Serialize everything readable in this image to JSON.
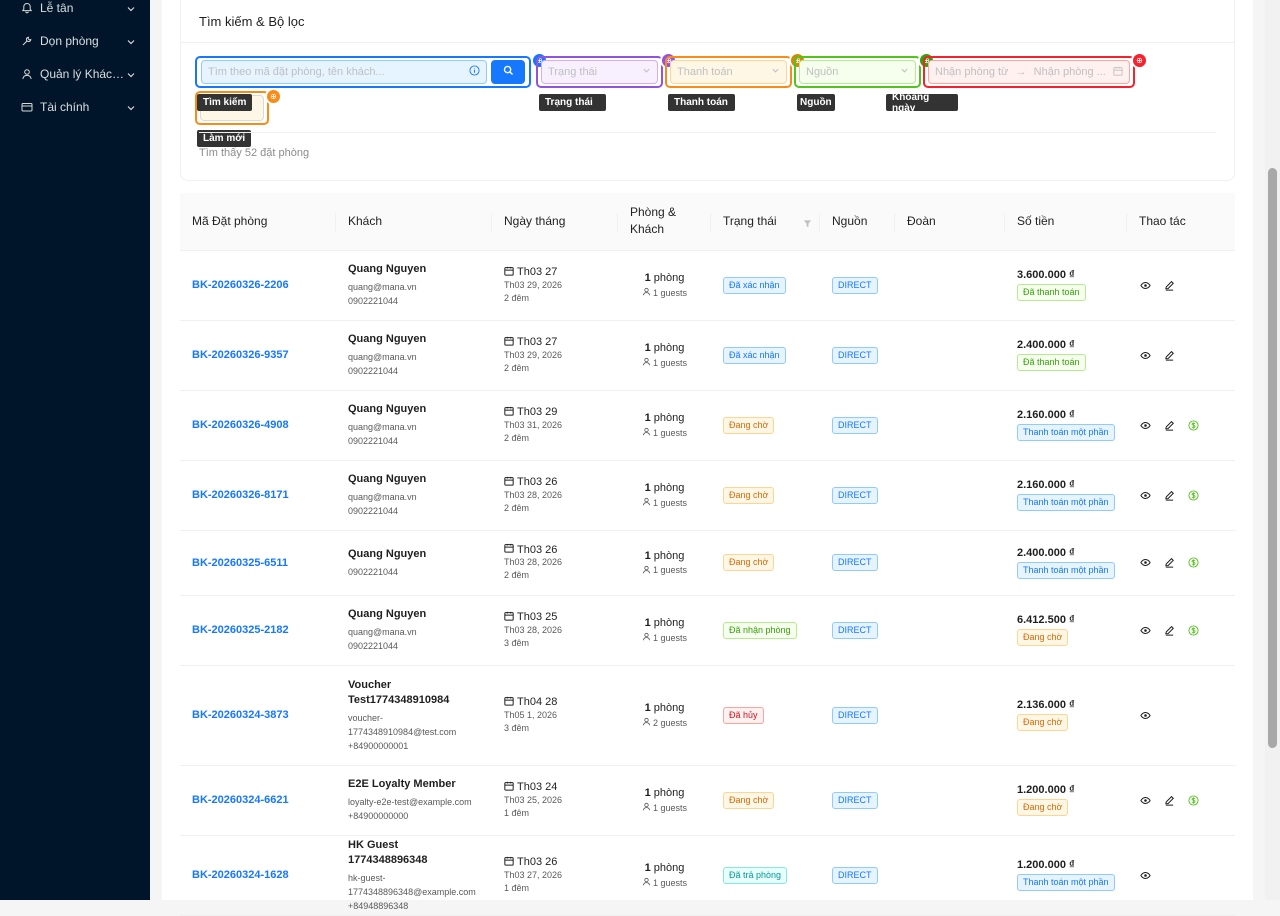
{
  "sidebar": {
    "items": [
      {
        "label": "Lễ tân",
        "icon": "bell-icon"
      },
      {
        "label": "Dọn phòng",
        "icon": "tool-icon"
      },
      {
        "label": "Quản lý Khách ...",
        "icon": "user-icon"
      },
      {
        "label": "Tài chính",
        "icon": "card-icon"
      }
    ]
  },
  "filter": {
    "title": "Tìm kiếm & Bộ lọc",
    "search_placeholder": "Tìm theo mã đặt phòng, tên khách...",
    "status_placeholder": "Trạng thái",
    "payment_placeholder": "Thanh toán",
    "source_placeholder": "Nguồn",
    "date_from_placeholder": "Nhận phòng từ",
    "date_arrow": "→",
    "date_to_placeholder": "Nhận phòng ...",
    "tags": {
      "search": "Tìm kiếm",
      "reset": "Làm mới",
      "status": "Trạng thái",
      "payment": "Thanh toán",
      "source": "Nguồn",
      "date": "Khoảng ngày"
    },
    "found_text": "Tìm thấy 52 đặt phòng"
  },
  "table": {
    "headers": {
      "code": "Mã Đặt phòng",
      "guest": "Khách",
      "date": "Ngày tháng",
      "rooms": "Phòng & Khách",
      "status": "Trạng thái",
      "source": "Nguồn",
      "group": "Đoàn",
      "amount": "Số tiền",
      "actions": "Thao tác"
    },
    "rows": [
      {
        "code": "BK-20260326-2206",
        "name": "Quang Nguyen",
        "sub1": "quang@mana.vn",
        "sub2": "0902221044",
        "sub3": "",
        "date": "Th03 27",
        "date2": "Th03 29, 2026",
        "nights": "2 đêm",
        "rooms": "1",
        "rooms_label": "phòng",
        "guests": "1 guests",
        "status": "Đã xác nhận",
        "status_color": "blue",
        "source": "DIRECT",
        "amount": "3.600.000 ₫",
        "pay": "Đã thanh toán",
        "pay_color": "green",
        "edit": true,
        "pay_action": false
      },
      {
        "code": "BK-20260326-9357",
        "name": "Quang Nguyen",
        "sub1": "quang@mana.vn",
        "sub2": "0902221044",
        "sub3": "",
        "date": "Th03 27",
        "date2": "Th03 29, 2026",
        "nights": "2 đêm",
        "rooms": "1",
        "rooms_label": "phòng",
        "guests": "1 guests",
        "status": "Đã xác nhận",
        "status_color": "blue",
        "source": "DIRECT",
        "amount": "2.400.000 ₫",
        "pay": "Đã thanh toán",
        "pay_color": "green",
        "edit": true,
        "pay_action": false
      },
      {
        "code": "BK-20260326-4908",
        "name": "Quang Nguyen",
        "sub1": "quang@mana.vn",
        "sub2": "0902221044",
        "sub3": "",
        "date": "Th03 29",
        "date2": "Th03 31, 2026",
        "nights": "2 đêm",
        "rooms": "1",
        "rooms_label": "phòng",
        "guests": "1 guests",
        "status": "Đang chờ",
        "status_color": "orange",
        "source": "DIRECT",
        "amount": "2.160.000 ₫",
        "pay": "Thanh toán một phần",
        "pay_color": "blue",
        "edit": true,
        "pay_action": true
      },
      {
        "code": "BK-20260326-8171",
        "name": "Quang Nguyen",
        "sub1": "quang@mana.vn",
        "sub2": "0902221044",
        "sub3": "",
        "date": "Th03 26",
        "date2": "Th03 28, 2026",
        "nights": "2 đêm",
        "rooms": "1",
        "rooms_label": "phòng",
        "guests": "1 guests",
        "status": "Đang chờ",
        "status_color": "orange",
        "source": "DIRECT",
        "amount": "2.160.000 ₫",
        "pay": "Thanh toán một phần",
        "pay_color": "blue",
        "edit": true,
        "pay_action": true
      },
      {
        "code": "BK-20260325-6511",
        "name": "Quang Nguyen",
        "sub1": "0902221044",
        "sub2": "",
        "sub3": "",
        "date": "Th03 26",
        "date2": "Th03 28, 2026",
        "nights": "2 đêm",
        "rooms": "1",
        "rooms_label": "phòng",
        "guests": "1 guests",
        "status": "Đang chờ",
        "status_color": "orange",
        "source": "DIRECT",
        "amount": "2.400.000 ₫",
        "pay": "Thanh toán một phần",
        "pay_color": "blue",
        "edit": true,
        "pay_action": true
      },
      {
        "code": "BK-20260325-2182",
        "name": "Quang Nguyen",
        "sub1": "quang@mana.vn",
        "sub2": "0902221044",
        "sub3": "",
        "date": "Th03 25",
        "date2": "Th03 28, 2026",
        "nights": "3 đêm",
        "rooms": "1",
        "rooms_label": "phòng",
        "guests": "1 guests",
        "status": "Đã nhận phòng",
        "status_color": "green",
        "source": "DIRECT",
        "amount": "6.412.500 ₫",
        "pay": "Đang chờ",
        "pay_color": "orange",
        "edit": true,
        "pay_action": true
      },
      {
        "code": "BK-20260324-3873",
        "name": "Voucher Test1774348910984",
        "sub1": "voucher-",
        "sub2": "1774348910984@test.com",
        "sub3": "+84900000001",
        "date": "Th04 28",
        "date2": "Th05 1, 2026",
        "nights": "3 đêm",
        "rooms": "1",
        "rooms_label": "phòng",
        "guests": "2 guests",
        "status": "Đã hủy",
        "status_color": "red",
        "source": "DIRECT",
        "amount": "2.136.000 ₫",
        "pay": "Đang chờ",
        "pay_color": "orange",
        "edit": false,
        "pay_action": false
      },
      {
        "code": "BK-20260324-6621",
        "name": "E2E Loyalty Member",
        "sub1": "loyalty-e2e-test@example.com",
        "sub2": "+84900000000",
        "sub3": "",
        "date": "Th03 24",
        "date2": "Th03 25, 2026",
        "nights": "1 đêm",
        "rooms": "1",
        "rooms_label": "phòng",
        "guests": "1 guests",
        "status": "Đang chờ",
        "status_color": "orange",
        "source": "DIRECT",
        "amount": "1.200.000 ₫",
        "pay": "Đang chờ",
        "pay_color": "orange",
        "edit": true,
        "pay_action": true
      },
      {
        "code": "BK-20260324-1628",
        "name": "HK Guest 1774348896348",
        "sub1": "hk-guest-",
        "sub2": "1774348896348@example.com",
        "sub3": "+84948896348",
        "date": "Th03 26",
        "date2": "Th03 27, 2026",
        "nights": "1 đêm",
        "rooms": "1",
        "rooms_label": "phòng",
        "guests": "1 guests",
        "status": "Đã trả phòng",
        "status_color": "cyan",
        "source": "DIRECT",
        "amount": "1.200.000 ₫",
        "pay": "Thanh toán một phần",
        "pay_color": "blue",
        "edit": false,
        "pay_action": false
      }
    ]
  },
  "colors": {
    "sidebar_bg": "#001529",
    "link": "#1677ff",
    "search_outline": "#1677ff",
    "status_outline": "#9254de",
    "payment_outline": "#fa8c16",
    "source_outline": "#52c41a",
    "date_outline": "#f5222d"
  }
}
